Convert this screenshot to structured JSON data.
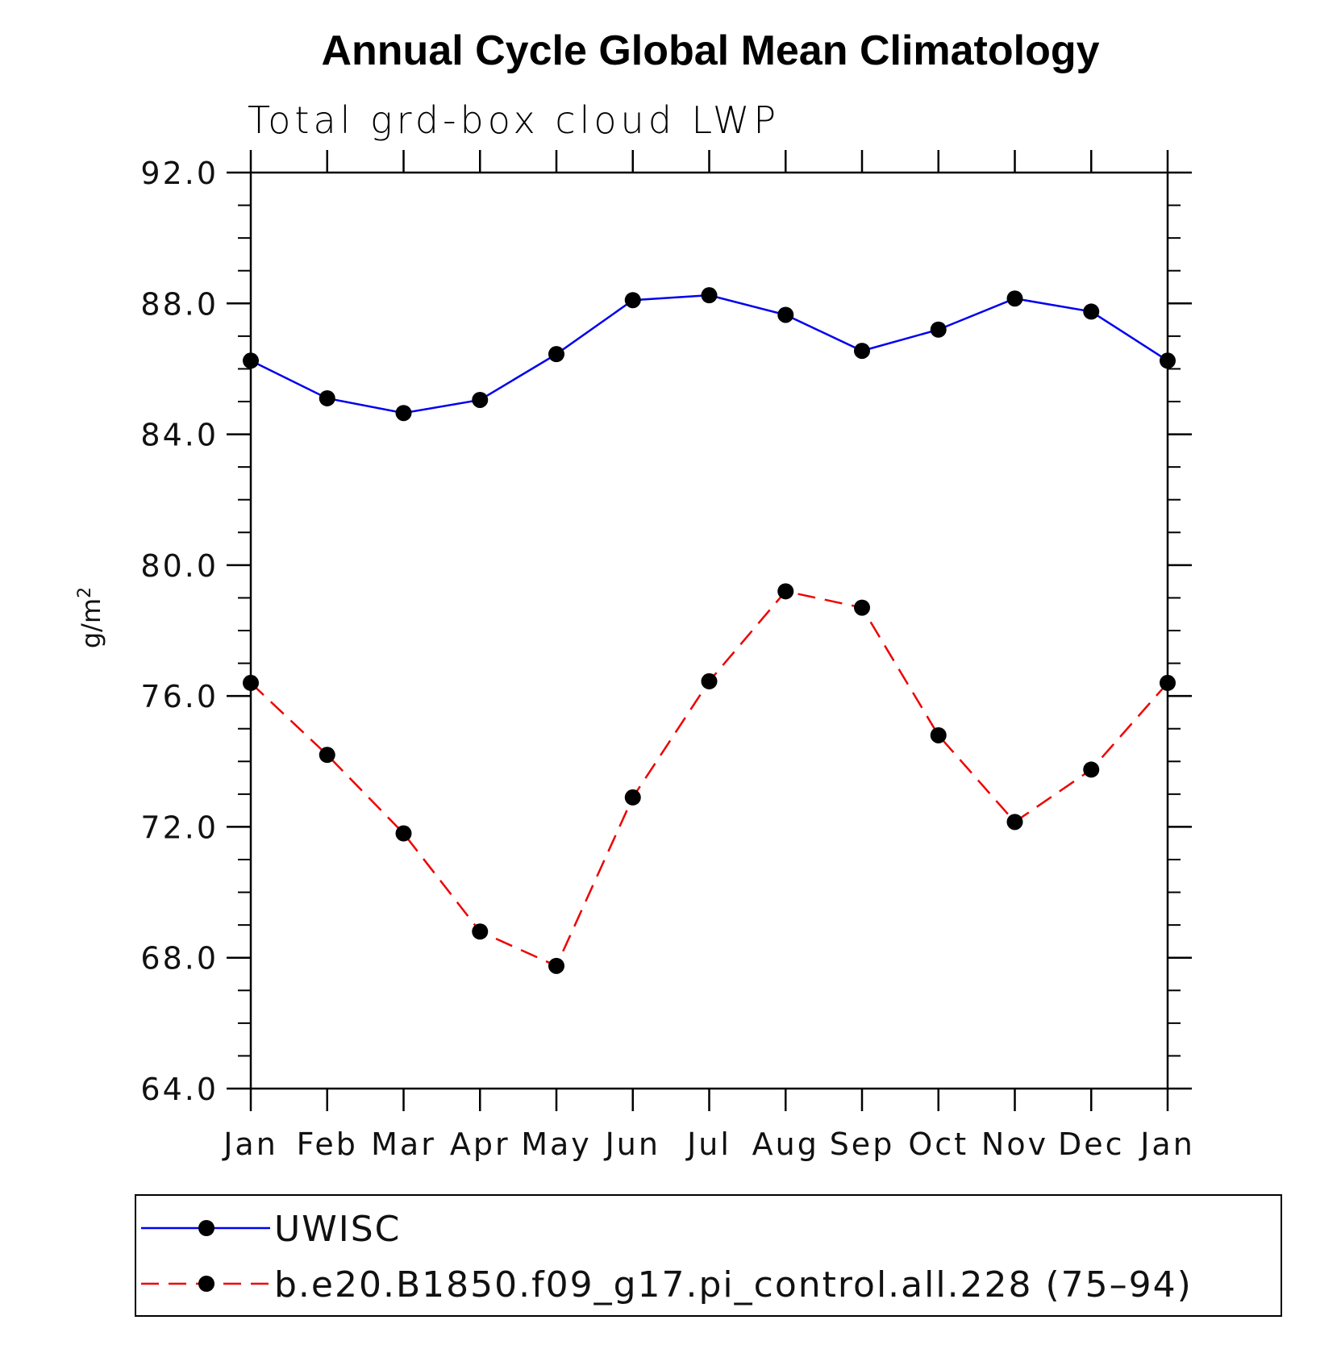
{
  "chart_data": {
    "type": "line",
    "title": "Annual Cycle Global Mean Climatology",
    "subtitle": "Total grd-box cloud LWP",
    "ylabel": "g/m",
    "ylabel_sup": "2",
    "ylim": [
      64.0,
      92.0
    ],
    "yticks": [
      "64.0",
      "68.0",
      "72.0",
      "76.0",
      "80.0",
      "84.0",
      "88.0",
      "92.0"
    ],
    "categories": [
      "Jan",
      "Feb",
      "Mar",
      "Apr",
      "May",
      "Jun",
      "Jul",
      "Aug",
      "Sep",
      "Oct",
      "Nov",
      "Dec",
      "Jan"
    ],
    "grid": false,
    "legend_position": "bottom",
    "series": [
      {
        "name": "UWISC",
        "color": "#0000ee",
        "style": "solid",
        "values": [
          86.25,
          85.1,
          84.65,
          85.05,
          86.45,
          88.1,
          88.25,
          87.65,
          86.55,
          87.2,
          88.15,
          87.75,
          86.25
        ]
      },
      {
        "name": "b.e20.B1850.f09_g17.pi_control.all.228 (75–94)",
        "color": "#ee0000",
        "style": "dashed",
        "values": [
          76.4,
          74.2,
          71.8,
          68.8,
          67.75,
          72.9,
          76.45,
          79.2,
          78.7,
          74.8,
          72.15,
          73.75,
          76.4
        ]
      }
    ]
  }
}
